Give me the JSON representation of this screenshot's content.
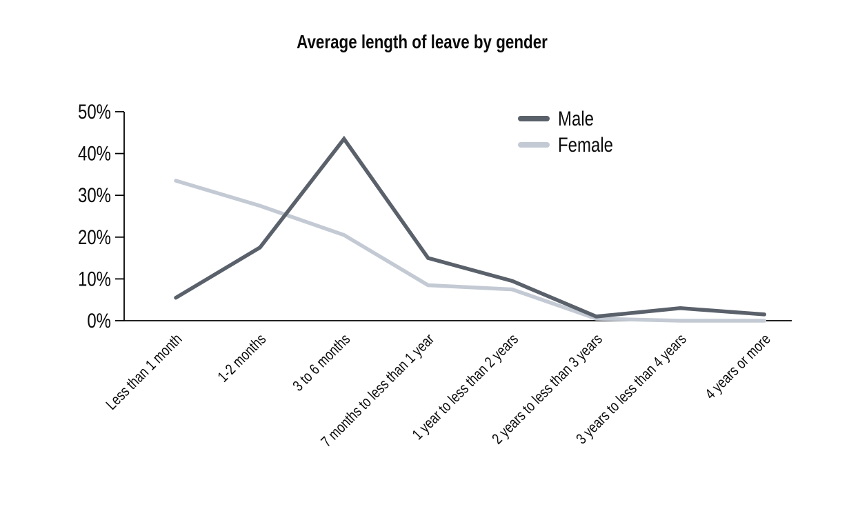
{
  "title": "Average length of leave by gender",
  "chart_data": {
    "type": "line",
    "title": "Average length of leave by gender",
    "categories": [
      "Less than 1 month",
      "1-2 months",
      "3 to 6 months",
      "7 months to less than 1 year",
      "1 year to less than 2 years",
      "2 years to less than 3 years",
      "3 years to less than 4 years",
      "4 years or more"
    ],
    "series": [
      {
        "name": "Male",
        "color": "#5a616b",
        "values": [
          5.5,
          17.5,
          43.5,
          15,
          9.5,
          1,
          3,
          1.5
        ]
      },
      {
        "name": "Female",
        "color": "#c4cad4",
        "values": [
          33.5,
          27.5,
          20.5,
          8.5,
          7.5,
          0.5,
          0,
          0
        ]
      }
    ],
    "xlabel": "",
    "ylabel": "",
    "ylim": [
      0,
      50
    ],
    "y_tick_labels": [
      "0%",
      "10%",
      "20%",
      "30%",
      "40%",
      "50%"
    ],
    "y_tick_step": 10,
    "grid": false,
    "legend_position": "top-right",
    "axis_color": "#000000",
    "text_color": "#0a0a0a",
    "background_color": "#ffffff"
  }
}
